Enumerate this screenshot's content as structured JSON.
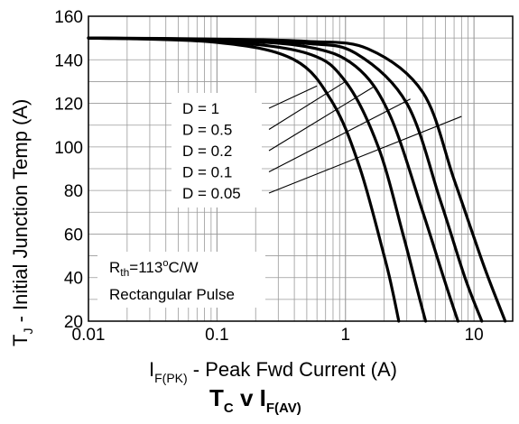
{
  "chart_data": {
    "type": "line",
    "x_scale": "log",
    "xlim": [
      0.01,
      20
    ],
    "ylim": [
      20,
      160
    ],
    "x_ticks": [
      0.01,
      0.1,
      1,
      10
    ],
    "x_tick_labels": [
      "0.01",
      "0.1",
      "1",
      "10"
    ],
    "y_ticks": [
      20,
      40,
      60,
      80,
      100,
      120,
      140,
      160
    ],
    "y_tick_labels": [
      "20",
      "40",
      "60",
      "80",
      "100",
      "120",
      "140",
      "160"
    ],
    "grid": true,
    "ylabel": {
      "main": "T",
      "sub": "J",
      "rest": " - Initial Junction Temp (A)"
    },
    "xlabel": {
      "main": "I",
      "sub": "F(PK)",
      "rest": " - Peak Fwd Current (A)"
    },
    "caption": {
      "t": "T",
      "t_sub": "C",
      "v": " v ",
      "i": "I",
      "i_sub": "F(AV)"
    },
    "annotation": {
      "rth_main": "R",
      "rth_sub": "th",
      "rth_value": "=113",
      "rth_deg": "o",
      "rth_unit": "C/W",
      "pulse": "Rectangular Pulse"
    },
    "series": [
      {
        "name": "D = 1",
        "x": [
          0.01,
          0.1,
          0.4,
          0.8,
          1.3,
          2.0,
          2.3,
          2.6
        ],
        "y": [
          150,
          148,
          140,
          120,
          90,
          50,
          35,
          20
        ]
      },
      {
        "name": "D = 0.5",
        "x": [
          0.01,
          0.1,
          0.5,
          1.0,
          1.8,
          2.8,
          3.6,
          4.2
        ],
        "y": [
          150,
          148.5,
          143,
          130,
          100,
          60,
          35,
          20
        ]
      },
      {
        "name": "D = 0.2",
        "x": [
          0.01,
          0.1,
          0.5,
          1.2,
          2.2,
          4.0,
          5.8,
          7.5
        ],
        "y": [
          150,
          149,
          146,
          137,
          115,
          70,
          40,
          20
        ]
      },
      {
        "name": "D = 0.1",
        "x": [
          0.01,
          0.1,
          0.5,
          1.2,
          3.0,
          5.5,
          8.5,
          11.5
        ],
        "y": [
          150,
          149.3,
          147.5,
          143,
          120,
          75,
          40,
          20
        ]
      },
      {
        "name": "D = 0.05",
        "x": [
          0.01,
          0.1,
          0.5,
          1.5,
          4.0,
          7.0,
          12.0,
          17.5
        ],
        "y": [
          150,
          149.5,
          148.5,
          145,
          125,
          85,
          45,
          20
        ]
      }
    ]
  }
}
